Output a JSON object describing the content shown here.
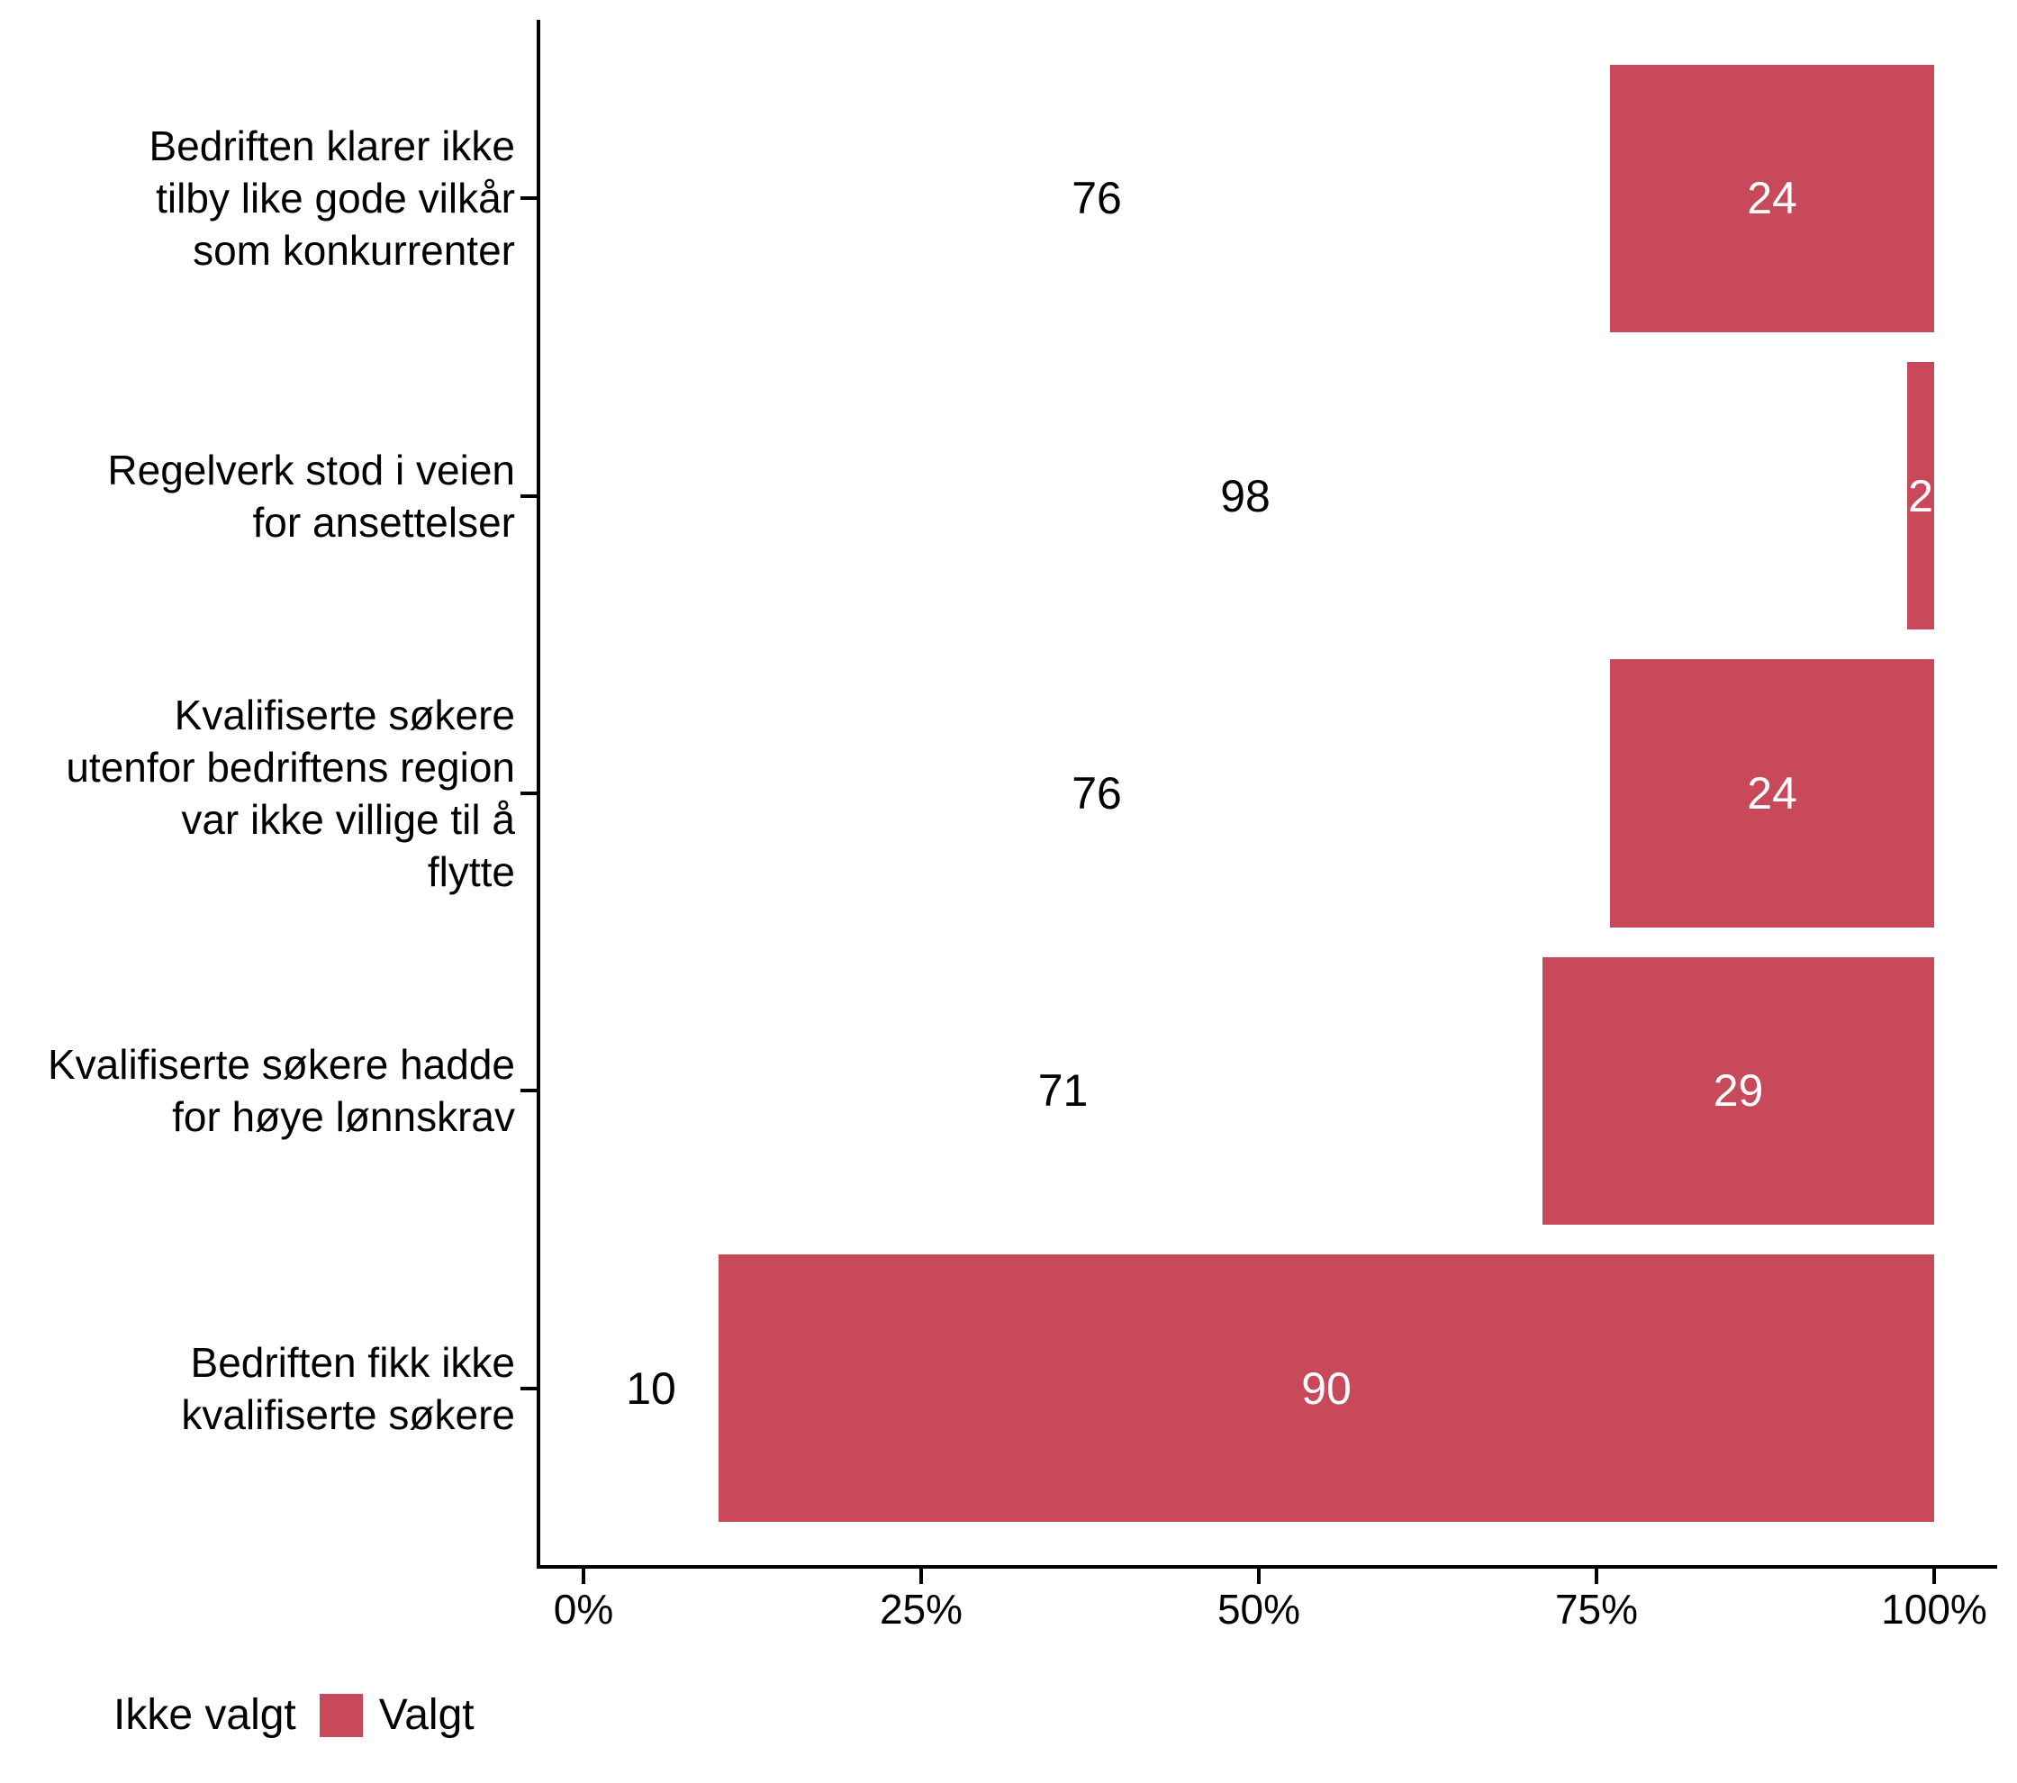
{
  "chart_data": {
    "type": "bar",
    "orientation": "horizontal",
    "stacked": true,
    "title": "",
    "xlabel": "",
    "ylabel": "",
    "xlim": [
      0,
      100
    ],
    "grid": false,
    "x_ticks": [
      {
        "value": 0,
        "label": "0%"
      },
      {
        "value": 25,
        "label": "25%"
      },
      {
        "value": 50,
        "label": "50%"
      },
      {
        "value": 75,
        "label": "75%"
      },
      {
        "value": 100,
        "label": "100%"
      }
    ],
    "categories": [
      {
        "label": "Bedriften klarer ikke tilby like gode vilkår som konkurrenter",
        "label_lines": [
          "Bedriften klarer ikke",
          "tilby like gode vilkår",
          "som konkurrenter"
        ],
        "values": {
          "ikke_valgt": 76,
          "valgt": 24
        }
      },
      {
        "label": "Regelverk stod i veien for ansettelser",
        "label_lines": [
          "Regelverk stod i veien",
          "for ansettelser"
        ],
        "values": {
          "ikke_valgt": 98,
          "valgt": 2
        }
      },
      {
        "label": "Kvalifiserte søkere utenfor bedriftens region var ikke villige til å flytte",
        "label_lines": [
          "Kvalifiserte søkere",
          "utenfor bedriftens region",
          "var ikke villige til å",
          "flytte"
        ],
        "values": {
          "ikke_valgt": 76,
          "valgt": 24
        }
      },
      {
        "label": "Kvalifiserte søkere hadde for høye lønnskrav",
        "label_lines": [
          "Kvalifiserte søkere hadde",
          "for høye lønnskrav"
        ],
        "values": {
          "ikke_valgt": 71,
          "valgt": 29
        }
      },
      {
        "label": "Bedriften fikk ikke kvalifiserte søkere",
        "label_lines": [
          "Bedriften fikk ikke",
          "kvalifiserte søkere"
        ],
        "values": {
          "ikke_valgt": 10,
          "valgt": 90
        }
      }
    ],
    "series": [
      {
        "name": "Ikke valgt",
        "color": "#FFFFFF",
        "text_color": "#000000",
        "values": [
          76,
          98,
          76,
          71,
          10
        ]
      },
      {
        "name": "Valgt",
        "color": "#C8495A",
        "text_color": "#FFFFFF",
        "values": [
          24,
          2,
          24,
          29,
          90
        ]
      }
    ],
    "legend": {
      "position": "bottom-left",
      "items": [
        {
          "label": "Ikke valgt",
          "color": "#FFFFFF"
        },
        {
          "label": "Valgt",
          "color": "#C8495A"
        }
      ]
    },
    "colors": {
      "background": "#FFFFFF",
      "axis": "#000000",
      "tick_text": "#000000"
    }
  }
}
